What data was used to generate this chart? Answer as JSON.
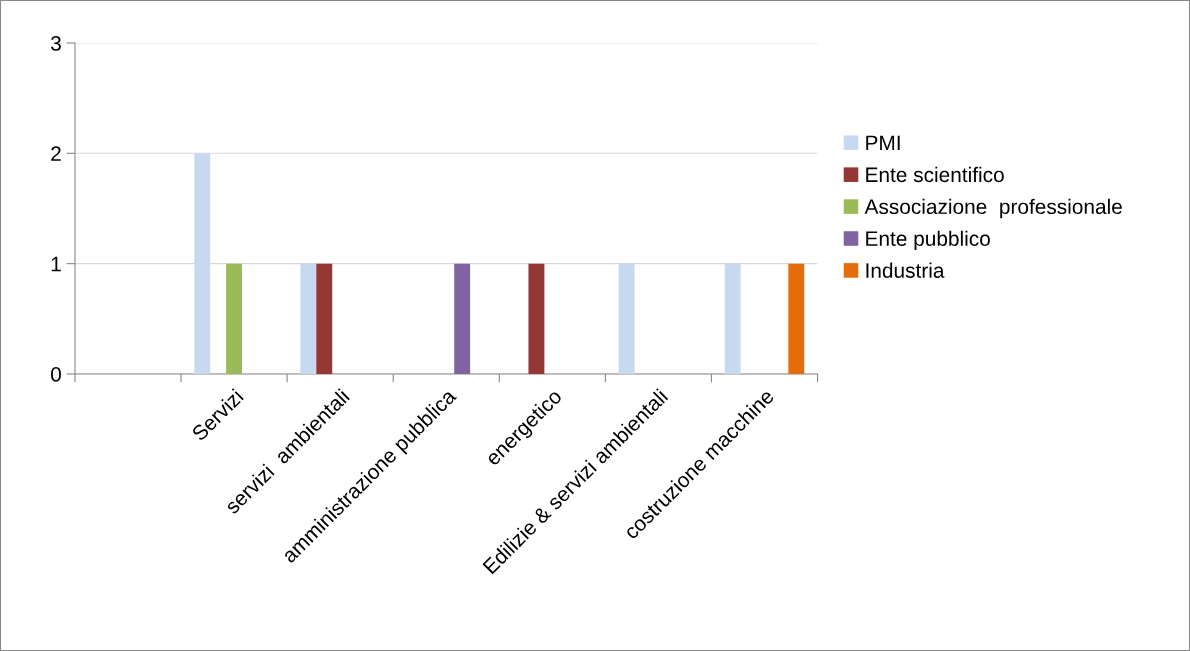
{
  "chart_data": {
    "type": "bar",
    "categories": [
      null,
      "Servizi",
      "servizi  ambientali",
      "amministrazione pubblica",
      "energetico",
      "Edilizie & servizi ambientali",
      "costruzione macchine"
    ],
    "series": [
      {
        "name": "PMI",
        "color": "#c6d9f1",
        "values": [
          null,
          2,
          1,
          null,
          null,
          1,
          1
        ]
      },
      {
        "name": "Ente scientifico",
        "color": "#953735",
        "values": [
          null,
          null,
          1,
          null,
          1,
          null,
          null
        ]
      },
      {
        "name": "Associazione  professionale",
        "color": "#9bbb59",
        "values": [
          null,
          1,
          null,
          null,
          null,
          null,
          null
        ]
      },
      {
        "name": "Ente pubblico",
        "color": "#8064a2",
        "values": [
          null,
          null,
          null,
          1,
          null,
          null,
          null
        ]
      },
      {
        "name": "Industria",
        "color": "#e46c0a",
        "values": [
          null,
          null,
          null,
          null,
          null,
          null,
          1
        ]
      }
    ],
    "ylim": [
      0,
      3
    ],
    "yticks": [
      0,
      1,
      2,
      3
    ],
    "grid": "y",
    "legend": "right"
  }
}
